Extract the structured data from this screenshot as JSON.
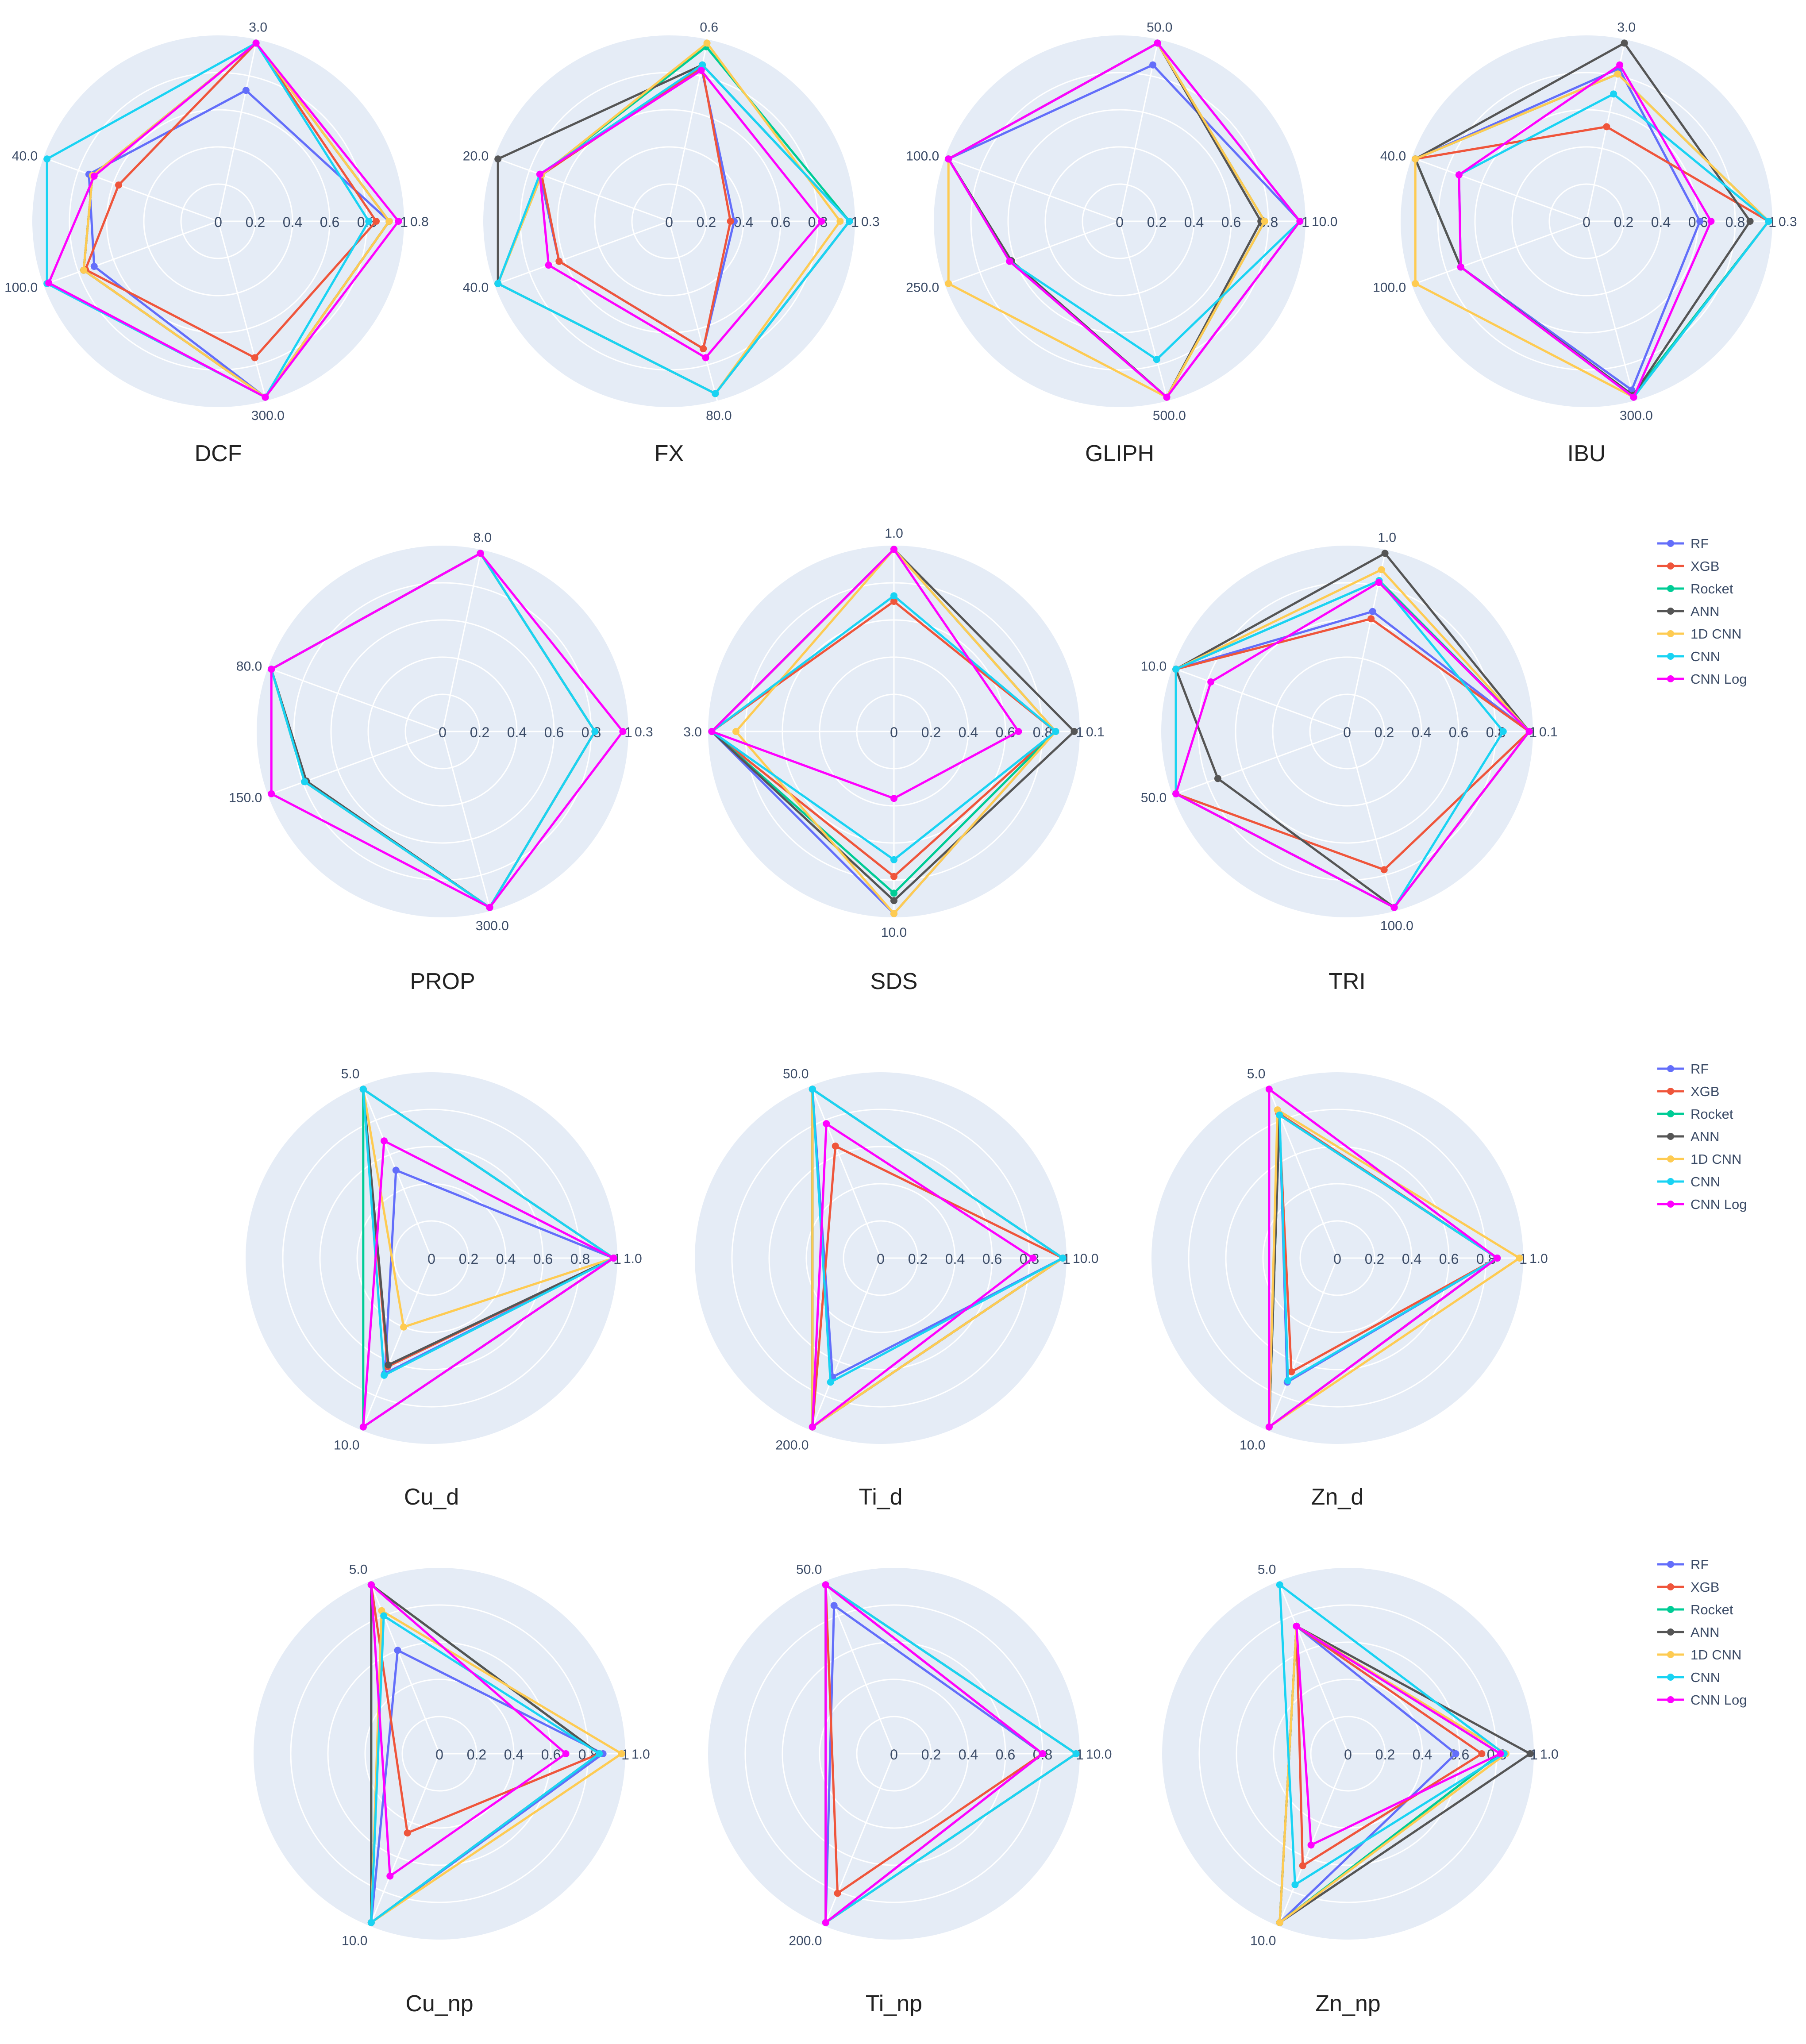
{
  "series_colors": {
    "RF": "#636efa",
    "XGB": "#ef553b",
    "Rocket": "#00cc96",
    "ANN": "#555555",
    "1D CNN": "#fecb52",
    "CNN": "#19d3f3",
    "CNN Log": "#ff00ff"
  },
  "legend": {
    "entries": [
      "RF",
      "XGB",
      "Rocket",
      "ANN",
      "1D CNN",
      "CNN",
      "CNN Log"
    ]
  },
  "chart_data": [
    {
      "type": "radar",
      "title": "DCF",
      "radial_ticks": [
        "0",
        "0.2",
        "0.4",
        "0.6",
        "0.8",
        "1"
      ],
      "axis_labels": [
        "0.8",
        "3.0",
        "40.0",
        "100.0",
        "300.0"
      ],
      "axis_angles_deg": [
        0,
        78,
        160,
        200,
        285
      ],
      "series": [
        {
          "name": "RF",
          "values": [
            0.92,
            0.72,
            0.74,
            0.71,
            0.98
          ]
        },
        {
          "name": "XGB",
          "values": [
            0.85,
            0.98,
            0.57,
            0.76,
            0.76
          ]
        },
        {
          "name": "Rocket",
          "values": [
            0.92,
            0.98,
            0.72,
            0.77,
            0.98
          ]
        },
        {
          "name": "ANN",
          "values": [
            0.92,
            0.98,
            0.72,
            0.77,
            0.98
          ]
        },
        {
          "name": "1D CNN",
          "values": [
            0.92,
            0.98,
            0.72,
            0.77,
            0.98
          ]
        },
        {
          "name": "CNN",
          "values": [
            0.81,
            0.98,
            0.98,
            0.98,
            0.98
          ]
        },
        {
          "name": "CNN Log",
          "values": [
            0.97,
            0.98,
            0.71,
            0.97,
            0.98
          ]
        }
      ]
    },
    {
      "type": "radar",
      "title": "FX",
      "radial_ticks": [
        "0",
        "0.2",
        "0.4",
        "0.6",
        "0.8",
        "1"
      ],
      "axis_labels": [
        "0.3",
        "0.6",
        "20.0",
        "40.0",
        "80.0"
      ],
      "axis_angles_deg": [
        0,
        78,
        160,
        200,
        285
      ],
      "series": [
        {
          "name": "RF",
          "values": [
            0.35,
            0.84,
            0.74,
            0.63,
            0.71
          ]
        },
        {
          "name": "XGB",
          "values": [
            0.33,
            0.85,
            0.73,
            0.63,
            0.71
          ]
        },
        {
          "name": "Rocket",
          "values": [
            0.97,
            0.96,
            0.73,
            0.98,
            0.96
          ]
        },
        {
          "name": "ANN",
          "values": [
            0.97,
            0.86,
            0.98,
            0.98,
            0.96
          ]
        },
        {
          "name": "1D CNN",
          "values": [
            0.92,
            0.98,
            0.73,
            0.98,
            0.96
          ]
        },
        {
          "name": "CNN",
          "values": [
            0.97,
            0.86,
            0.74,
            0.98,
            0.96
          ]
        },
        {
          "name": "CNN Log",
          "values": [
            0.82,
            0.83,
            0.74,
            0.69,
            0.76
          ]
        }
      ]
    },
    {
      "type": "radar",
      "title": "GLIPH",
      "radial_ticks": [
        "0",
        "0.2",
        "0.4",
        "0.6",
        "0.8",
        "1"
      ],
      "axis_labels": [
        "10.0",
        "50.0",
        "100.0",
        "250.0",
        "500.0"
      ],
      "axis_angles_deg": [
        0,
        78,
        160,
        200,
        285
      ],
      "series": [
        {
          "name": "RF",
          "values": [
            0.97,
            0.86,
            0.98,
            0.63,
            0.98
          ]
        },
        {
          "name": "XGB",
          "values": [
            0.78,
            0.98,
            0.98,
            0.62,
            0.98
          ]
        },
        {
          "name": "Rocket",
          "values": [
            0.78,
            0.98,
            0.98,
            0.62,
            0.98
          ]
        },
        {
          "name": "ANN",
          "values": [
            0.76,
            0.98,
            0.98,
            0.62,
            0.98
          ]
        },
        {
          "name": "1D CNN",
          "values": [
            0.78,
            0.98,
            0.98,
            0.98,
            0.98
          ]
        },
        {
          "name": "CNN",
          "values": [
            0.97,
            0.98,
            0.98,
            0.63,
            0.77
          ]
        },
        {
          "name": "CNN Log",
          "values": [
            0.97,
            0.98,
            0.98,
            0.63,
            0.98
          ]
        }
      ]
    },
    {
      "type": "radar",
      "title": "IBU",
      "radial_ticks": [
        "0",
        "0.2",
        "0.4",
        "0.6",
        "0.8",
        "1"
      ],
      "axis_labels": [
        "0.3",
        "3.0",
        "40.0",
        "100.0",
        "300.0"
      ],
      "axis_angles_deg": [
        0,
        78,
        160,
        200,
        285
      ],
      "series": [
        {
          "name": "RF",
          "values": [
            0.61,
            0.84,
            0.98,
            0.72,
            0.94
          ]
        },
        {
          "name": "XGB",
          "values": [
            0.98,
            0.52,
            0.98,
            0.72,
            0.97
          ]
        },
        {
          "name": "Rocket",
          "values": [
            0.98,
            0.81,
            0.98,
            0.72,
            0.97
          ]
        },
        {
          "name": "ANN",
          "values": [
            0.88,
            0.98,
            0.98,
            0.72,
            0.97
          ]
        },
        {
          "name": "1D CNN",
          "values": [
            0.98,
            0.81,
            0.98,
            0.98,
            0.98
          ]
        },
        {
          "name": "CNN",
          "values": [
            0.98,
            0.7,
            0.73,
            0.72,
            0.98
          ]
        },
        {
          "name": "CNN Log",
          "values": [
            0.67,
            0.86,
            0.73,
            0.72,
            0.98
          ]
        }
      ]
    },
    {
      "type": "radar",
      "title": "PROP",
      "radial_ticks": [
        "0",
        "0.2",
        "0.4",
        "0.6",
        "0.8",
        "1"
      ],
      "axis_labels": [
        "0.3",
        "8.0",
        "80.0",
        "150.0",
        "300.0"
      ],
      "axis_angles_deg": [
        0,
        78,
        160,
        200,
        285
      ],
      "series": [
        {
          "name": "RF",
          "values": [
            0.82,
            0.98,
            0.98,
            0.79,
            0.98
          ]
        },
        {
          "name": "XGB",
          "values": [
            0.82,
            0.98,
            0.98,
            0.79,
            0.98
          ]
        },
        {
          "name": "Rocket",
          "values": [
            0.82,
            0.98,
            0.98,
            0.79,
            0.98
          ]
        },
        {
          "name": "ANN",
          "values": [
            0.82,
            0.98,
            0.98,
            0.78,
            0.98
          ]
        },
        {
          "name": "1D CNN",
          "values": [
            0.82,
            0.98,
            0.98,
            0.79,
            0.98
          ]
        },
        {
          "name": "CNN",
          "values": [
            0.82,
            0.98,
            0.98,
            0.79,
            0.98
          ]
        },
        {
          "name": "CNN Log",
          "values": [
            0.97,
            0.98,
            0.98,
            0.98,
            0.98
          ]
        }
      ]
    },
    {
      "type": "radar",
      "title": "SDS",
      "radial_ticks": [
        "0",
        "0.2",
        "0.4",
        "0.6",
        "0.8",
        "1"
      ],
      "axis_labels": [
        "0.1",
        "1.0",
        "3.0",
        "10.0"
      ],
      "axis_angles_deg": [
        0,
        90,
        180,
        270
      ],
      "series": [
        {
          "name": "RF",
          "values": [
            0.87,
            0.98,
            0.98,
            0.98
          ]
        },
        {
          "name": "XGB",
          "values": [
            0.87,
            0.7,
            0.98,
            0.78
          ]
        },
        {
          "name": "Rocket",
          "values": [
            0.87,
            0.98,
            0.98,
            0.87
          ]
        },
        {
          "name": "ANN",
          "values": [
            0.97,
            0.98,
            0.98,
            0.91
          ]
        },
        {
          "name": "1D CNN",
          "values": [
            0.87,
            0.98,
            0.85,
            0.98
          ]
        },
        {
          "name": "CNN",
          "values": [
            0.87,
            0.73,
            0.98,
            0.69
          ]
        },
        {
          "name": "CNN Log",
          "values": [
            0.67,
            0.98,
            0.98,
            0.36
          ]
        }
      ]
    },
    {
      "type": "radar",
      "title": "TRI",
      "radial_ticks": [
        "0",
        "0.2",
        "0.4",
        "0.6",
        "0.8",
        "1"
      ],
      "axis_labels": [
        "0.1",
        "1.0",
        "10.0",
        "50.0",
        "100.0"
      ],
      "axis_angles_deg": [
        0,
        78,
        160,
        200,
        285
      ],
      "series": [
        {
          "name": "RF",
          "values": [
            0.98,
            0.66,
            0.98,
            0.98,
            0.98
          ]
        },
        {
          "name": "XGB",
          "values": [
            0.98,
            0.62,
            0.98,
            0.98,
            0.77
          ]
        },
        {
          "name": "Rocket",
          "values": [
            0.98,
            0.83,
            0.98,
            0.98,
            0.98
          ]
        },
        {
          "name": "ANN",
          "values": [
            0.98,
            0.98,
            0.98,
            0.74,
            0.98
          ]
        },
        {
          "name": "1D CNN",
          "values": [
            0.98,
            0.89,
            0.98,
            0.98,
            0.98
          ]
        },
        {
          "name": "CNN",
          "values": [
            0.84,
            0.83,
            0.98,
            0.98,
            0.98
          ]
        },
        {
          "name": "CNN Log",
          "values": [
            0.98,
            0.82,
            0.78,
            0.98,
            0.98
          ]
        }
      ]
    },
    {
      "type": "radar",
      "title": "Cu_d",
      "radial_ticks": [
        "0",
        "0.2",
        "0.4",
        "0.6",
        "0.8",
        "1"
      ],
      "axis_labels": [
        "1.0",
        "5.0",
        "10.0"
      ],
      "axis_angles_deg": [
        0,
        112,
        248
      ],
      "series": [
        {
          "name": "RF",
          "values": [
            0.98,
            0.51,
            0.67
          ]
        },
        {
          "name": "XGB",
          "values": [
            0.98,
            0.98,
            0.63
          ]
        },
        {
          "name": "Rocket",
          "values": [
            0.98,
            0.98,
            0.98
          ]
        },
        {
          "name": "ANN",
          "values": [
            0.98,
            0.98,
            0.62
          ]
        },
        {
          "name": "1D CNN",
          "values": [
            0.98,
            0.98,
            0.4
          ]
        },
        {
          "name": "CNN",
          "values": [
            0.98,
            0.98,
            0.68
          ]
        },
        {
          "name": "CNN Log",
          "values": [
            0.98,
            0.68,
            0.98
          ]
        }
      ]
    },
    {
      "type": "radar",
      "title": "Ti_d",
      "radial_ticks": [
        "0",
        "0.2",
        "0.4",
        "0.6",
        "0.8",
        "1"
      ],
      "axis_labels": [
        "10.0",
        "50.0",
        "200.0"
      ],
      "axis_angles_deg": [
        0,
        112,
        248
      ],
      "series": [
        {
          "name": "RF",
          "values": [
            0.98,
            0.98,
            0.69
          ]
        },
        {
          "name": "XGB",
          "values": [
            0.98,
            0.65,
            0.98
          ]
        },
        {
          "name": "Rocket",
          "values": [
            0.98,
            0.98,
            0.98
          ]
        },
        {
          "name": "ANN",
          "values": [
            0.98,
            0.98,
            0.98
          ]
        },
        {
          "name": "1D CNN",
          "values": [
            0.98,
            0.98,
            0.98
          ]
        },
        {
          "name": "CNN",
          "values": [
            0.98,
            0.98,
            0.72
          ]
        },
        {
          "name": "CNN Log",
          "values": [
            0.82,
            0.78,
            0.98
          ]
        }
      ]
    },
    {
      "type": "radar",
      "title": "Zn_d",
      "radial_ticks": [
        "0",
        "0.2",
        "0.4",
        "0.6",
        "0.8",
        "1"
      ],
      "axis_labels": [
        "1.0",
        "5.0",
        "10.0"
      ],
      "axis_angles_deg": [
        0,
        112,
        248
      ],
      "series": [
        {
          "name": "RF",
          "values": [
            0.86,
            0.83,
            0.72
          ]
        },
        {
          "name": "XGB",
          "values": [
            0.86,
            0.84,
            0.66
          ]
        },
        {
          "name": "Rocket",
          "values": [
            0.86,
            0.83,
            0.98
          ]
        },
        {
          "name": "ANN",
          "values": [
            0.86,
            0.83,
            0.98
          ]
        },
        {
          "name": "1D CNN",
          "values": [
            0.98,
            0.86,
            0.98
          ]
        },
        {
          "name": "CNN",
          "values": [
            0.86,
            0.83,
            0.71
          ]
        },
        {
          "name": "CNN Log",
          "values": [
            0.86,
            0.98,
            0.98
          ]
        }
      ]
    },
    {
      "type": "radar",
      "title": "Cu_np",
      "radial_ticks": [
        "0",
        "0.2",
        "0.4",
        "0.6",
        "0.8",
        "1"
      ],
      "axis_labels": [
        "1.0",
        "5.0",
        "10.0"
      ],
      "axis_angles_deg": [
        0,
        112,
        248
      ],
      "series": [
        {
          "name": "RF",
          "values": [
            0.88,
            0.6,
            0.98
          ]
        },
        {
          "name": "XGB",
          "values": [
            0.86,
            0.98,
            0.46
          ]
        },
        {
          "name": "Rocket",
          "values": [
            0.86,
            0.98,
            0.98
          ]
        },
        {
          "name": "ANN",
          "values": [
            0.86,
            0.98,
            0.98
          ]
        },
        {
          "name": "1D CNN",
          "values": [
            0.98,
            0.83,
            0.98
          ]
        },
        {
          "name": "CNN",
          "values": [
            0.86,
            0.8,
            0.98
          ]
        },
        {
          "name": "CNN Log",
          "values": [
            0.68,
            0.98,
            0.71
          ]
        }
      ]
    },
    {
      "type": "radar",
      "title": "Ti_np",
      "radial_ticks": [
        "0",
        "0.2",
        "0.4",
        "0.6",
        "0.8",
        "1"
      ],
      "axis_labels": [
        "10.0",
        "50.0",
        "200.0"
      ],
      "axis_angles_deg": [
        0,
        112,
        248
      ],
      "series": [
        {
          "name": "RF",
          "values": [
            0.8,
            0.86,
            0.98
          ]
        },
        {
          "name": "XGB",
          "values": [
            0.8,
            0.98,
            0.81
          ]
        },
        {
          "name": "Rocket",
          "values": [
            0.98,
            0.98,
            0.98
          ]
        },
        {
          "name": "ANN",
          "values": [
            0.98,
            0.98,
            0.98
          ]
        },
        {
          "name": "1D CNN",
          "values": [
            0.98,
            0.98,
            0.98
          ]
        },
        {
          "name": "CNN",
          "values": [
            0.98,
            0.98,
            0.98
          ]
        },
        {
          "name": "CNN Log",
          "values": [
            0.8,
            0.98,
            0.98
          ]
        }
      ]
    },
    {
      "type": "radar",
      "title": "Zn_np",
      "radial_ticks": [
        "0",
        "0.2",
        "0.4",
        "0.6",
        "0.8",
        "1"
      ],
      "axis_labels": [
        "1.0",
        "5.0",
        "10.0"
      ],
      "axis_angles_deg": [
        0,
        112,
        248
      ],
      "series": [
        {
          "name": "RF",
          "values": [
            0.58,
            0.74,
            0.98
          ]
        },
        {
          "name": "XGB",
          "values": [
            0.72,
            0.74,
            0.65
          ]
        },
        {
          "name": "Rocket",
          "values": [
            0.82,
            0.74,
            0.98
          ]
        },
        {
          "name": "ANN",
          "values": [
            0.98,
            0.74,
            0.98
          ]
        },
        {
          "name": "1D CNN",
          "values": [
            0.85,
            0.74,
            0.98
          ]
        },
        {
          "name": "CNN",
          "values": [
            0.84,
            0.98,
            0.76
          ]
        },
        {
          "name": "CNN Log",
          "values": [
            0.82,
            0.74,
            0.53
          ]
        }
      ]
    }
  ]
}
